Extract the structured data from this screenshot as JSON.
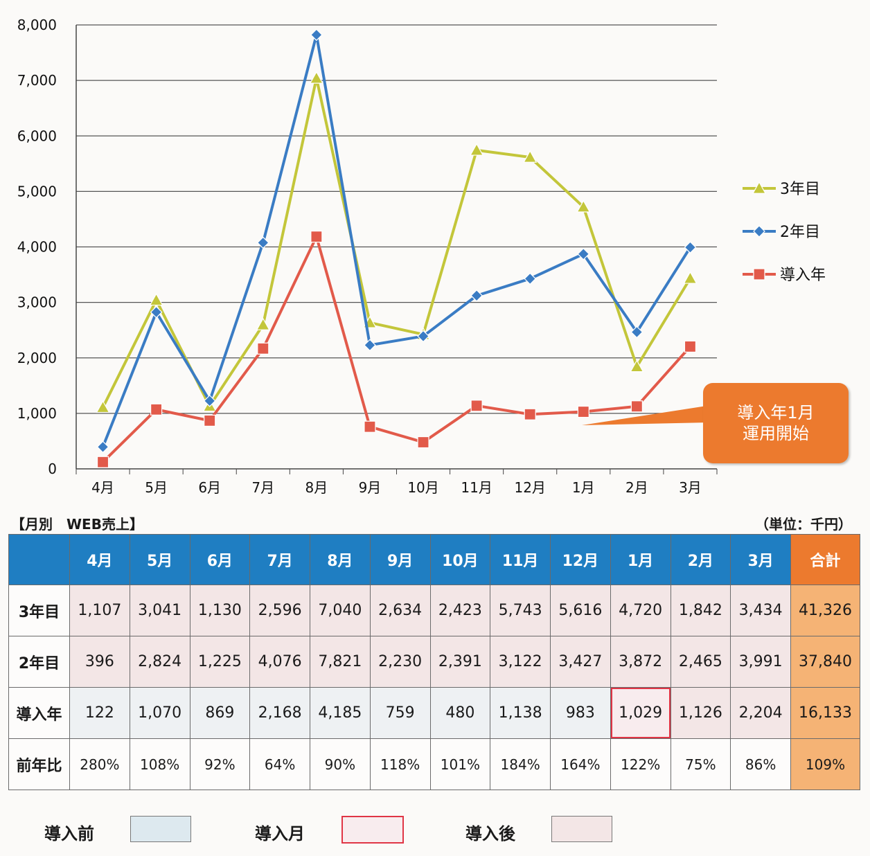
{
  "chart_data": {
    "type": "line",
    "categories": [
      "4月",
      "5月",
      "6月",
      "7月",
      "8月",
      "9月",
      "10月",
      "11月",
      "12月",
      "1月",
      "2月",
      "3月"
    ],
    "ylim": [
      0,
      8000
    ],
    "yticks": [
      "0",
      "1,000",
      "2,000",
      "3,000",
      "4,000",
      "5,000",
      "6,000",
      "7,000",
      "8,000"
    ],
    "series": [
      {
        "name": "3年目",
        "color": "#c3c63a",
        "marker": "triangle",
        "values": [
          1107,
          3041,
          1130,
          2596,
          7040,
          2634,
          2423,
          5743,
          5616,
          4720,
          1842,
          3434
        ]
      },
      {
        "name": "2年目",
        "color": "#3a7cc4",
        "marker": "diamond",
        "values": [
          396,
          2824,
          1225,
          4076,
          7821,
          2230,
          2391,
          3122,
          3427,
          3872,
          2465,
          3991
        ]
      },
      {
        "name": "導入年",
        "color": "#e25a4a",
        "marker": "square",
        "values": [
          122,
          1070,
          869,
          2168,
          4185,
          759,
          480,
          1138,
          983,
          1029,
          1126,
          2204
        ]
      }
    ],
    "legend_position": "right",
    "grid": true
  },
  "callout": {
    "line1": "導入年1月",
    "line2": "運用開始",
    "color": "#ec7a2e"
  },
  "table": {
    "title": "【月別　WEB売上】",
    "unit": "（単位：千円）",
    "headers": [
      "",
      "4月",
      "5月",
      "6月",
      "7月",
      "8月",
      "9月",
      "10月",
      "11月",
      "12月",
      "1月",
      "2月",
      "3月",
      "合計"
    ],
    "rows": [
      {
        "label": "3年目",
        "cells": [
          "1,107",
          "3,041",
          "1,130",
          "2,596",
          "7,040",
          "2,634",
          "2,423",
          "5,743",
          "5,616",
          "4,720",
          "1,842",
          "3,434",
          "41,326"
        ]
      },
      {
        "label": "2年目",
        "cells": [
          "396",
          "2,824",
          "1,225",
          "4,076",
          "7,821",
          "2,230",
          "2,391",
          "3,122",
          "3,427",
          "3,872",
          "2,465",
          "3,991",
          "37,840"
        ]
      },
      {
        "label": "導入年",
        "cells": [
          "122",
          "1,070",
          "869",
          "2,168",
          "4,185",
          "759",
          "480",
          "1,138",
          "983",
          "1,029",
          "1,126",
          "2,204",
          "16,133"
        ]
      },
      {
        "label": "前年比",
        "cells": [
          "280%",
          "108%",
          "92%",
          "64%",
          "90%",
          "118%",
          "101%",
          "184%",
          "164%",
          "122%",
          "75%",
          "86%",
          "109%"
        ]
      }
    ]
  },
  "legend": {
    "before": "導入前",
    "month": "導入月",
    "after": "導入後",
    "colors": {
      "before": "#dde9ef",
      "month": "#f8ecee",
      "after": "#f3e6e6",
      "month_border": "#e03545"
    }
  }
}
